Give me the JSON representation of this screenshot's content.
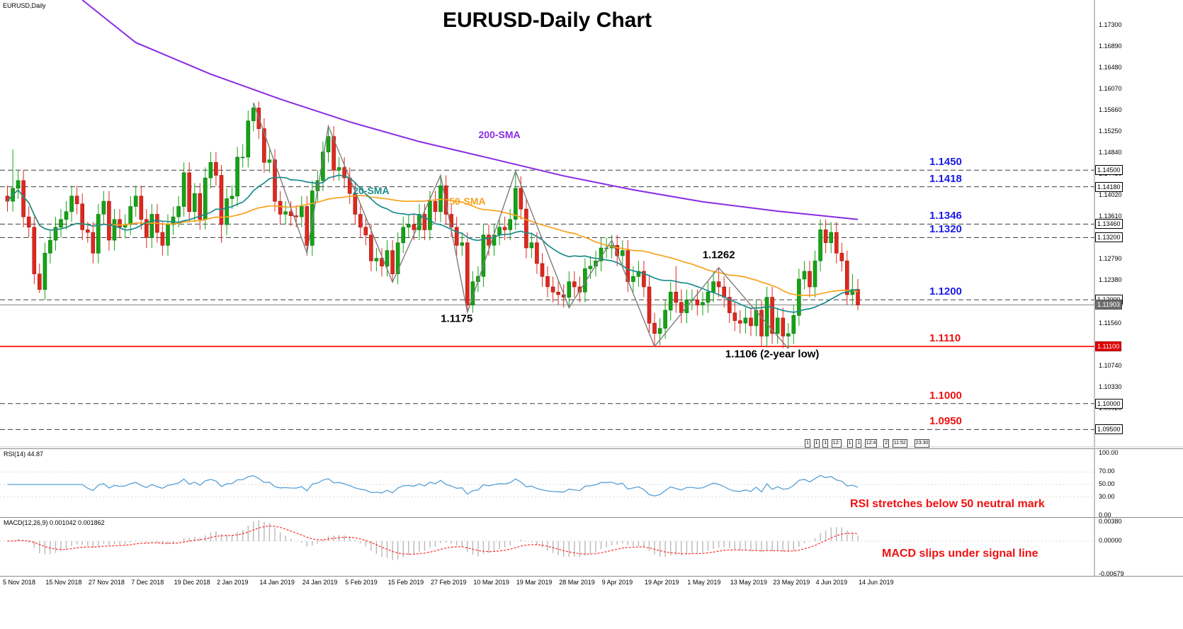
{
  "window": {
    "symbol_label": "EURUSD,Daily",
    "title": "EURUSD-Daily Chart"
  },
  "chart_data": {
    "type": "candlestick",
    "symbol": "EURUSD",
    "timeframe": "Daily",
    "x_labels": [
      "5 Nov 2018",
      "15 Nov 2018",
      "27 Nov 2018",
      "7 Dec 2018",
      "19 Dec 2018",
      "2 Jan 2019",
      "14 Jan 2019",
      "24 Jan 2019",
      "5 Feb 2019",
      "15 Feb 2019",
      "27 Feb 2019",
      "10 Mar 2019",
      "19 Mar 2019",
      "28 Mar 2019",
      "9 Apr 2019",
      "19 Apr 2019",
      "1 May 2019",
      "13 May 2019",
      "23 May 2019",
      "4 Jun 2019",
      "14 Jun 2019"
    ],
    "bars_per_label": 8,
    "price_axis": {
      "top": 1.1778,
      "bottom": 1.0915,
      "tick_start": 1.173,
      "tick_step": 0.0041,
      "tick_count": 20,
      "decimals": 5
    },
    "candles": [
      [
        1.14,
        1.142,
        1.137,
        1.139
      ],
      [
        1.139,
        1.149,
        1.137,
        1.1415
      ],
      [
        1.1415,
        1.145,
        1.1395,
        1.143
      ],
      [
        1.143,
        1.145,
        1.134,
        1.136
      ],
      [
        1.136,
        1.138,
        1.132,
        1.134
      ],
      [
        1.134,
        1.136,
        1.123,
        1.125
      ],
      [
        1.125,
        1.127,
        1.1213,
        1.122
      ],
      [
        1.122,
        1.131,
        1.12,
        1.129
      ],
      [
        1.129,
        1.1335,
        1.127,
        1.1315
      ],
      [
        1.1315,
        1.136,
        1.1295,
        1.134
      ],
      [
        1.134,
        1.1375,
        1.132,
        1.1355
      ],
      [
        1.1355,
        1.139,
        1.1335,
        1.137
      ],
      [
        1.137,
        1.142,
        1.135,
        1.14
      ],
      [
        1.14,
        1.142,
        1.1365,
        1.1385
      ],
      [
        1.1385,
        1.1405,
        1.1315,
        1.1335
      ],
      [
        1.1335,
        1.135,
        1.131,
        1.133
      ],
      [
        1.133,
        1.135,
        1.127,
        1.129
      ],
      [
        1.129,
        1.1385,
        1.127,
        1.1365
      ],
      [
        1.1365,
        1.141,
        1.1345,
        1.139
      ],
      [
        1.139,
        1.141,
        1.1295,
        1.1315
      ],
      [
        1.1315,
        1.1375,
        1.1295,
        1.1355
      ],
      [
        1.1355,
        1.1375,
        1.132,
        1.134
      ],
      [
        1.134,
        1.1365,
        1.132,
        1.1345
      ],
      [
        1.1345,
        1.14,
        1.1325,
        1.138
      ],
      [
        1.138,
        1.142,
        1.136,
        1.14
      ],
      [
        1.14,
        1.142,
        1.1335,
        1.1355
      ],
      [
        1.1355,
        1.1375,
        1.13,
        1.132
      ],
      [
        1.132,
        1.1385,
        1.13,
        1.1365
      ],
      [
        1.1365,
        1.1385,
        1.131,
        1.133
      ],
      [
        1.133,
        1.135,
        1.1285,
        1.1305
      ],
      [
        1.1305,
        1.1365,
        1.1285,
        1.1345
      ],
      [
        1.1345,
        1.138,
        1.1325,
        1.136
      ],
      [
        1.136,
        1.14,
        1.134,
        1.138
      ],
      [
        1.138,
        1.1465,
        1.136,
        1.1445
      ],
      [
        1.1445,
        1.1465,
        1.135,
        1.137
      ],
      [
        1.137,
        1.1425,
        1.135,
        1.1405
      ],
      [
        1.1405,
        1.1425,
        1.1335,
        1.1355
      ],
      [
        1.1355,
        1.1455,
        1.1335,
        1.1435
      ],
      [
        1.1435,
        1.1485,
        1.1415,
        1.1465
      ],
      [
        1.1465,
        1.1485,
        1.142,
        1.144
      ],
      [
        1.144,
        1.146,
        1.131,
        1.1345
      ],
      [
        1.1345,
        1.1415,
        1.1325,
        1.1395
      ],
      [
        1.1395,
        1.142,
        1.1375,
        1.14
      ],
      [
        1.14,
        1.1495,
        1.138,
        1.1475
      ],
      [
        1.1475,
        1.15,
        1.1455,
        1.1475
      ],
      [
        1.1475,
        1.1565,
        1.1455,
        1.1545
      ],
      [
        1.1545,
        1.158,
        1.1525,
        1.157
      ],
      [
        1.157,
        1.1582,
        1.151,
        1.153
      ],
      [
        1.153,
        1.155,
        1.1445,
        1.1465
      ],
      [
        1.1465,
        1.149,
        1.1445,
        1.147
      ],
      [
        1.147,
        1.149,
        1.137,
        1.139
      ],
      [
        1.139,
        1.141,
        1.1345,
        1.1365
      ],
      [
        1.1365,
        1.139,
        1.1345,
        1.137
      ],
      [
        1.137,
        1.139,
        1.1342,
        1.1362
      ],
      [
        1.1362,
        1.1382,
        1.134,
        1.136
      ],
      [
        1.136,
        1.14,
        1.134,
        1.138
      ],
      [
        1.138,
        1.14,
        1.1285,
        1.1305
      ],
      [
        1.1305,
        1.143,
        1.1285,
        1.141
      ],
      [
        1.141,
        1.145,
        1.139,
        1.143
      ],
      [
        1.143,
        1.1505,
        1.141,
        1.1485
      ],
      [
        1.1485,
        1.1535,
        1.1465,
        1.1515
      ],
      [
        1.1515,
        1.1535,
        1.143,
        1.145
      ],
      [
        1.145,
        1.1475,
        1.143,
        1.1455
      ],
      [
        1.1455,
        1.1475,
        1.1415,
        1.1435
      ],
      [
        1.1435,
        1.1455,
        1.1385,
        1.1405
      ],
      [
        1.1405,
        1.1425,
        1.1345,
        1.1365
      ],
      [
        1.1365,
        1.1385,
        1.132,
        1.134
      ],
      [
        1.134,
        1.136,
        1.1305,
        1.1325
      ],
      [
        1.1325,
        1.1345,
        1.1255,
        1.1275
      ],
      [
        1.1275,
        1.13,
        1.1255,
        1.128
      ],
      [
        1.128,
        1.13,
        1.1245,
        1.1265
      ],
      [
        1.1265,
        1.1315,
        1.1245,
        1.1295
      ],
      [
        1.1295,
        1.1315,
        1.1234,
        1.125
      ],
      [
        1.125,
        1.133,
        1.123,
        1.131
      ],
      [
        1.131,
        1.136,
        1.129,
        1.134
      ],
      [
        1.134,
        1.1365,
        1.132,
        1.1345
      ],
      [
        1.1345,
        1.1365,
        1.1315,
        1.1335
      ],
      [
        1.1335,
        1.1385,
        1.1315,
        1.1365
      ],
      [
        1.1365,
        1.1385,
        1.1315,
        1.1335
      ],
      [
        1.1335,
        1.141,
        1.1315,
        1.139
      ],
      [
        1.139,
        1.141,
        1.135,
        1.137
      ],
      [
        1.137,
        1.144,
        1.135,
        1.142
      ],
      [
        1.142,
        1.144,
        1.1345,
        1.1365
      ],
      [
        1.1365,
        1.1385,
        1.132,
        1.134
      ],
      [
        1.134,
        1.136,
        1.1285,
        1.1305
      ],
      [
        1.1305,
        1.133,
        1.1285,
        1.131
      ],
      [
        1.131,
        1.133,
        1.1176,
        1.119
      ],
      [
        1.119,
        1.1255,
        1.1175,
        1.1235
      ],
      [
        1.1235,
        1.1265,
        1.1215,
        1.1245
      ],
      [
        1.1245,
        1.1345,
        1.1225,
        1.1325
      ],
      [
        1.1325,
        1.1345,
        1.1285,
        1.1305
      ],
      [
        1.1305,
        1.1345,
        1.1285,
        1.1325
      ],
      [
        1.1325,
        1.136,
        1.1305,
        1.134
      ],
      [
        1.134,
        1.136,
        1.1315,
        1.1335
      ],
      [
        1.1335,
        1.1375,
        1.1315,
        1.1355
      ],
      [
        1.1355,
        1.1448,
        1.1335,
        1.1415
      ],
      [
        1.1415,
        1.1438,
        1.1355,
        1.1375
      ],
      [
        1.1375,
        1.1395,
        1.128,
        1.13
      ],
      [
        1.13,
        1.133,
        1.128,
        1.131
      ],
      [
        1.131,
        1.133,
        1.125,
        1.127
      ],
      [
        1.127,
        1.129,
        1.1225,
        1.1245
      ],
      [
        1.1245,
        1.1265,
        1.1205,
        1.1225
      ],
      [
        1.1225,
        1.1245,
        1.1195,
        1.1215
      ],
      [
        1.1215,
        1.1235,
        1.119,
        1.121
      ],
      [
        1.121,
        1.123,
        1.1185,
        1.1205
      ],
      [
        1.1205,
        1.1255,
        1.1183,
        1.1235
      ],
      [
        1.1235,
        1.1255,
        1.1205,
        1.1225
      ],
      [
        1.1225,
        1.1245,
        1.1195,
        1.1215
      ],
      [
        1.1215,
        1.128,
        1.1195,
        1.126
      ],
      [
        1.126,
        1.1285,
        1.124,
        1.1265
      ],
      [
        1.1265,
        1.1295,
        1.1245,
        1.1275
      ],
      [
        1.1275,
        1.132,
        1.1255,
        1.13
      ],
      [
        1.13,
        1.132,
        1.128,
        1.13
      ],
      [
        1.13,
        1.1325,
        1.128,
        1.1305
      ],
      [
        1.1305,
        1.1325,
        1.1265,
        1.1285
      ],
      [
        1.1285,
        1.1315,
        1.1265,
        1.1295
      ],
      [
        1.1295,
        1.1315,
        1.1215,
        1.1235
      ],
      [
        1.1235,
        1.1265,
        1.1215,
        1.1245
      ],
      [
        1.1245,
        1.1275,
        1.1225,
        1.1255
      ],
      [
        1.1255,
        1.1275,
        1.1205,
        1.1225
      ],
      [
        1.1225,
        1.1245,
        1.1135,
        1.1155
      ],
      [
        1.1155,
        1.1175,
        1.111,
        1.1135
      ],
      [
        1.1135,
        1.1165,
        1.1112,
        1.1145
      ],
      [
        1.1145,
        1.12,
        1.1125,
        1.118
      ],
      [
        1.118,
        1.1235,
        1.116,
        1.1215
      ],
      [
        1.1215,
        1.1265,
        1.1175,
        1.1195
      ],
      [
        1.1195,
        1.122,
        1.1155,
        1.1175
      ],
      [
        1.1175,
        1.122,
        1.1155,
        1.12
      ],
      [
        1.12,
        1.122,
        1.118,
        1.12
      ],
      [
        1.12,
        1.122,
        1.117,
        1.119
      ],
      [
        1.119,
        1.1215,
        1.117,
        1.1195
      ],
      [
        1.1195,
        1.1235,
        1.1175,
        1.1215
      ],
      [
        1.1215,
        1.1255,
        1.1195,
        1.1235
      ],
      [
        1.1235,
        1.1262,
        1.1205,
        1.1225
      ],
      [
        1.1225,
        1.1245,
        1.1185,
        1.1205
      ],
      [
        1.1205,
        1.1225,
        1.1155,
        1.1175
      ],
      [
        1.1175,
        1.1195,
        1.114,
        1.116
      ],
      [
        1.116,
        1.118,
        1.1135,
        1.1155
      ],
      [
        1.1155,
        1.1185,
        1.1135,
        1.1165
      ],
      [
        1.1165,
        1.1185,
        1.113,
        1.115
      ],
      [
        1.115,
        1.12,
        1.113,
        1.118
      ],
      [
        1.118,
        1.12,
        1.111,
        1.113
      ],
      [
        1.113,
        1.1225,
        1.111,
        1.1205
      ],
      [
        1.1205,
        1.1225,
        1.1115,
        1.1135
      ],
      [
        1.1135,
        1.1185,
        1.1115,
        1.1165
      ],
      [
        1.1165,
        1.1185,
        1.1107,
        1.113
      ],
      [
        1.113,
        1.1155,
        1.1106,
        1.1135
      ],
      [
        1.1135,
        1.119,
        1.1115,
        1.117
      ],
      [
        1.117,
        1.126,
        1.115,
        1.124
      ],
      [
        1.124,
        1.1275,
        1.122,
        1.1255
      ],
      [
        1.1255,
        1.1275,
        1.1205,
        1.1225
      ],
      [
        1.1225,
        1.1295,
        1.1205,
        1.1275
      ],
      [
        1.1275,
        1.1355,
        1.1255,
        1.1335
      ],
      [
        1.1335,
        1.1355,
        1.129,
        1.131
      ],
      [
        1.131,
        1.135,
        1.129,
        1.133
      ],
      [
        1.133,
        1.135,
        1.127,
        1.129
      ],
      [
        1.129,
        1.131,
        1.1255,
        1.1275
      ],
      [
        1.1275,
        1.1295,
        1.119,
        1.121
      ],
      [
        1.121,
        1.125,
        1.119,
        1.122
      ],
      [
        1.122,
        1.124,
        1.118,
        1.119
      ]
    ],
    "levels": [
      {
        "price": 1.145,
        "label": "1.1450",
        "box": "1.14500",
        "color": "blue",
        "style": "dashed"
      },
      {
        "price": 1.1418,
        "label": "1.1418",
        "box": "1.14180",
        "color": "blue",
        "style": "dashed"
      },
      {
        "price": 1.1346,
        "label": "1.1346",
        "box": "1.13460",
        "color": "blue",
        "style": "dashed"
      },
      {
        "price": 1.132,
        "label": "1.1320",
        "box": "1.13200",
        "color": "blue",
        "style": "dashed"
      },
      {
        "price": 1.12,
        "label": "1.1200",
        "box": "1.12000",
        "color": "blue",
        "style": "dashed"
      },
      {
        "price": 1.111,
        "label": "1.1110",
        "box": "1.11100",
        "color": "red",
        "style": "solid"
      },
      {
        "price": 1.1,
        "label": "1.1000",
        "box": "1.10000",
        "color": "red",
        "style": "dashed"
      },
      {
        "price": 1.095,
        "label": "1.0950",
        "box": "1.09500",
        "color": "red",
        "style": "dashed"
      }
    ],
    "current_price": {
      "value": 1.11903,
      "box": "1.11903"
    },
    "sma_labels": {
      "sma20": "20-SMA",
      "sma50": "50-SMA",
      "sma200": "200-SMA"
    },
    "label_anchors": {
      "sma20": [
        68,
        1.141
      ],
      "sma50": [
        86,
        1.139
      ],
      "sma200": [
        92,
        1.1518
      ]
    },
    "sma200_anchors": [
      [
        14,
        1.1778
      ],
      [
        24,
        1.1696
      ],
      [
        38,
        1.1635
      ],
      [
        51,
        1.1587
      ],
      [
        64,
        1.1543
      ],
      [
        77,
        1.1505
      ],
      [
        91,
        1.1471
      ],
      [
        104,
        1.1439
      ],
      [
        117,
        1.1412
      ],
      [
        130,
        1.1389
      ],
      [
        144,
        1.1371
      ],
      [
        159,
        1.1355
      ]
    ],
    "zigzag": [
      [
        46,
        1.158
      ],
      [
        56,
        1.129
      ],
      [
        60,
        1.1535
      ],
      [
        72,
        1.1234
      ],
      [
        81,
        1.144
      ],
      [
        86,
        1.1176
      ],
      [
        95,
        1.1448
      ],
      [
        105,
        1.1185
      ],
      [
        113,
        1.1315
      ],
      [
        121,
        1.111
      ],
      [
        133,
        1.1262
      ],
      [
        146,
        1.1106
      ]
    ],
    "annotations": [
      {
        "text": "1.1262",
        "bar": 133,
        "price": 1.1286
      },
      {
        "text": "1.1175",
        "bar": 84,
        "price": 1.1164
      },
      {
        "text": "1.1106 (2-year low)",
        "bar": 143,
        "price": 1.1095
      }
    ],
    "rsi": {
      "label": "RSI(14) 44.87",
      "period": 14,
      "current": 44.87,
      "axis": [
        "100.00",
        "70.00",
        "50.00",
        "30.00",
        "0.00"
      ],
      "axis_values": [
        100,
        70,
        50,
        30,
        0
      ],
      "guide_levels": [
        70,
        50,
        30
      ],
      "note": "RSI stretches below 50 neutral mark"
    },
    "macd": {
      "label": "MACD(12,26,9) 0.001042 0.001862",
      "fast": 12,
      "slow": 26,
      "signal_period": 9,
      "main_value": 0.001042,
      "signal_value": 0.001862,
      "axis": [
        "0.00380",
        "0.00000",
        "-0.00679"
      ],
      "axis_values": [
        0.0038,
        0,
        -0.00679
      ],
      "note": "MACD slips under signal line"
    },
    "event_tags": [
      "1",
      "1",
      "1",
      "12:",
      "1",
      "1",
      "12:4",
      "2",
      "11:52",
      "23:30"
    ]
  },
  "colors": {
    "candle_up": "#15a315",
    "candle_up_border": "#0b760b",
    "candle_down": "#e0281e",
    "candle_down_border": "#9c170f",
    "sma20": "#1b8b8b",
    "sma50": "#f7a21b",
    "sma200": "#8a2be2",
    "zigzag": "#7d7d7d",
    "level_dashed": "#3c3c3c",
    "level_red": "#ff0000",
    "label_blue": "#1a1ae6",
    "label_red": "#ee1111",
    "current_line": "#a0a0a0",
    "rsi_line": "#56a0d8",
    "macd_hist": "#b8b8b8",
    "macd_signal": "#ff2a2a"
  }
}
